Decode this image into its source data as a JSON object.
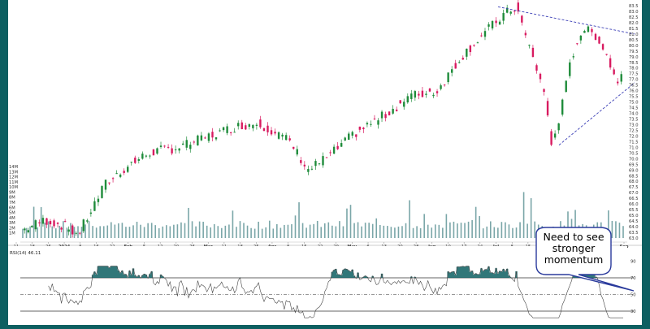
{
  "chart_data": [
    {
      "type": "candlestick",
      "title": "",
      "x_ticks": [
        "11",
        "18",
        "26",
        "2024",
        "8",
        "16",
        "22",
        "Feb",
        "5",
        "12",
        "20",
        "26",
        "Mar",
        "11",
        "18",
        "25",
        "Apr",
        "8",
        "15",
        "22",
        "29",
        "May",
        "6",
        "13",
        "20",
        "28",
        "Jun",
        "10",
        "17",
        "24",
        "Jul",
        "8",
        "15",
        "22",
        "Aug",
        "12",
        "19",
        "26",
        "Sep"
      ],
      "price_axis": {
        "min": 63.0,
        "max": 83.5,
        "ticks": [
          "83.5",
          "83.0",
          "82.5",
          "82.0",
          "81.5",
          "81.0",
          "80.5",
          "80.0",
          "79.5",
          "79.0",
          "78.5",
          "78.0",
          "77.5",
          "77.0",
          "76.5",
          "76.0",
          "75.5",
          "75.0",
          "74.5",
          "74.0",
          "73.5",
          "73.0",
          "72.5",
          "72.0",
          "71.5",
          "71.0",
          "70.5",
          "70.0",
          "69.5",
          "69.0",
          "68.5",
          "68.0",
          "67.5",
          "67.0",
          "66.5",
          "66.0",
          "65.5",
          "65.0",
          "64.5",
          "64.0",
          "63.5",
          "63.0"
        ]
      },
      "volume_axis": {
        "min": 0,
        "max": 14,
        "unit": "M",
        "ticks": [
          "14M",
          "13M",
          "12M",
          "11M",
          "10M",
          "9M",
          "8M",
          "7M",
          "6M",
          "5M",
          "4M",
          "3M",
          "2M",
          "1M"
        ]
      },
      "trendlines": [
        {
          "from": [
            "Jul 10",
            83.4
          ],
          "to": [
            "Sep 6",
            81.0
          ],
          "style": "dashed"
        },
        {
          "from": [
            "Aug 5",
            71.2
          ],
          "to": [
            "Sep 6",
            76.7
          ],
          "style": "dashed"
        }
      ],
      "colors": {
        "up": "#1f8c3b",
        "down": "#d81b60",
        "volume": "#7aa6a8",
        "trend": "#3b3fb6",
        "panel_bg": "#0d5f61"
      }
    },
    {
      "type": "line",
      "indicator_label": "RSI(14) 46.11",
      "y_ticks": [
        "90",
        "70",
        "50",
        "30"
      ],
      "levels": [
        70,
        50,
        30
      ],
      "ylim": [
        20,
        90
      ]
    }
  ],
  "callout": {
    "line1": "Need to see",
    "line2": "stronger",
    "line3": "momentum"
  }
}
